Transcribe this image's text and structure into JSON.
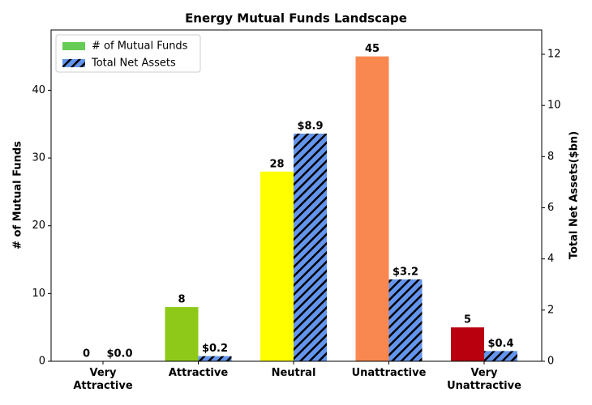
{
  "chart_data": {
    "type": "bar",
    "title": "Energy Mutual Funds Landscape",
    "categories": [
      "Very\nAttractive",
      "Attractive",
      "Neutral",
      "Unattractive",
      "Very\nUnattractive"
    ],
    "y_label": "# of Mutual Funds",
    "y2_label": "Total Net Assets($bn)",
    "series": [
      {
        "name": "# of Mutual Funds",
        "color": "#66cc55",
        "colors": [
          "#66cc55",
          "#8ec919",
          "#ffff00",
          "#f98850",
          "#b8000f"
        ],
        "values": [
          0,
          8,
          28,
          45,
          5
        ]
      },
      {
        "name": "Total Net Assets",
        "color": "#6495ed",
        "hatch": true,
        "axis": "y2",
        "values": [
          0.0,
          0.2,
          8.9,
          3.2,
          0.4
        ],
        "value_labels": [
          "$0.0",
          "$0.2",
          "$8.9",
          "$3.2",
          "$0.4"
        ]
      }
    ],
    "ylim": [
      0,
      48.9
    ],
    "yticks": [
      0,
      10,
      20,
      30,
      40
    ],
    "y2lim": [
      0,
      12.95
    ],
    "y2ticks": [
      0,
      2,
      4,
      6,
      8,
      10,
      12
    ],
    "legend": "upper-left"
  }
}
